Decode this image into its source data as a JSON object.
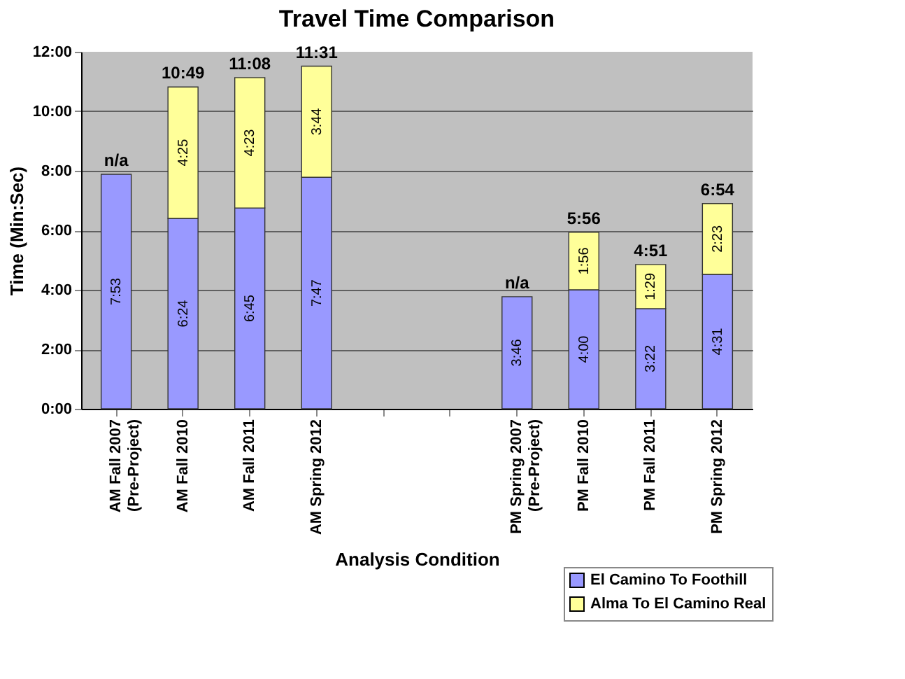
{
  "chart_data": {
    "type": "bar",
    "title": "Travel Time Comparison",
    "xlabel": "Analysis Condition",
    "ylabel": "Time (Min:Sec)",
    "categories": [
      "AM Fall 2007 (Pre-Project)",
      "AM Fall 2010",
      "AM Fall 2011",
      "AM Spring 2012",
      null,
      null,
      "PM Spring 2007 (Pre-Project)",
      "PM Fall 2010",
      "PM Fall 2011",
      "PM Spring 2012"
    ],
    "stacked": true,
    "series": [
      {
        "name": "El Camino To Foothill",
        "color": "#9999ff",
        "values": [
          7.8833,
          6.4,
          6.75,
          7.7833,
          null,
          null,
          3.7667,
          4,
          3.3667,
          4.5167
        ],
        "value_labels": [
          "7:53",
          "6:24",
          "6:45",
          "7:47",
          null,
          null,
          "3:46",
          "4:00",
          "3:22",
          "4:31"
        ]
      },
      {
        "name": "Alma To El Camino Real",
        "color": "#ffff99",
        "values": [
          null,
          4.4167,
          4.3833,
          3.7333,
          null,
          null,
          null,
          1.9333,
          1.4833,
          2.3833
        ],
        "value_labels": [
          null,
          "4:25",
          "4:23",
          "3:44",
          null,
          null,
          null,
          "1:56",
          "1:29",
          "2:23"
        ]
      }
    ],
    "totals": [
      "n/a",
      "10:49",
      "11:08",
      "11:31",
      null,
      null,
      "n/a",
      "5:56",
      "4:51",
      "6:54"
    ],
    "ylim": [
      0,
      12
    ],
    "yticks": [
      {
        "value": 0,
        "label": "0:00"
      },
      {
        "value": 2,
        "label": "2:00"
      },
      {
        "value": 4,
        "label": "4:00"
      },
      {
        "value": 6,
        "label": "6:00"
      },
      {
        "value": 8,
        "label": "8:00"
      },
      {
        "value": 10,
        "label": "10:00"
      },
      {
        "value": 12,
        "label": "12:00"
      }
    ],
    "grid": "y",
    "legend": "bottom right"
  }
}
